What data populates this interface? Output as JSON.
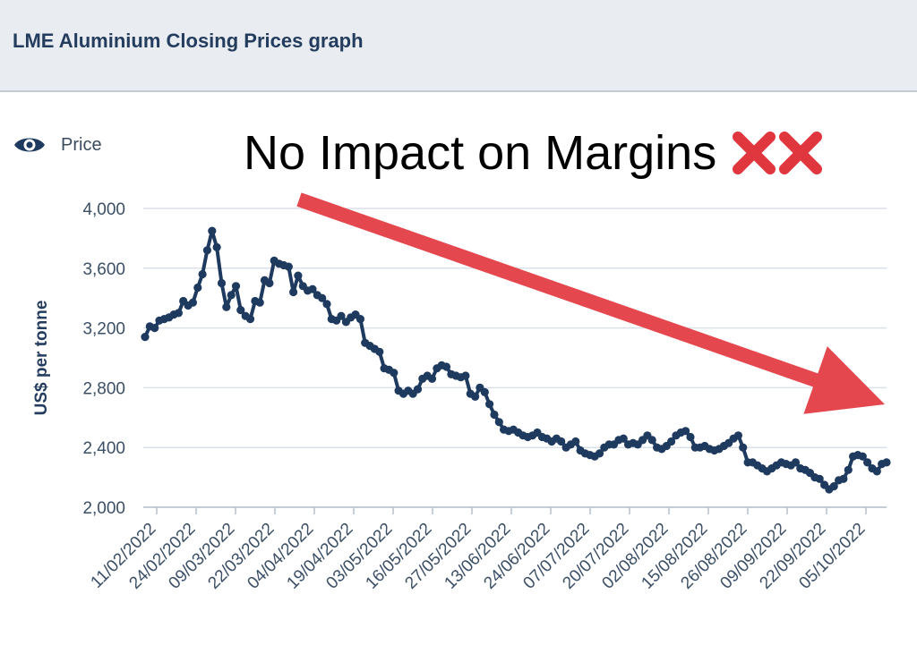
{
  "header": {
    "title": "LME Aluminium Closing Prices graph"
  },
  "legend": {
    "label": "Price",
    "icon": "eye-icon"
  },
  "annotation": {
    "text": "No Impact on Margins",
    "icons": [
      "cross-mark-icon",
      "cross-mark-icon"
    ],
    "color": "#e0373f"
  },
  "colors": {
    "line": "#1f3a5f",
    "arrow": "#e5474e",
    "grid": "#dbe1e8",
    "header_bg": "#e9edf2"
  },
  "chart_data": {
    "type": "line",
    "title": "LME Aluminium Closing Prices graph",
    "xlabel": "",
    "ylabel": "US$ per tonne",
    "ylim": [
      2000,
      4000
    ],
    "yticks": [
      "2,000",
      "2,400",
      "2,800",
      "3,200",
      "3,600",
      "4,000"
    ],
    "ytick_values": [
      2000,
      2400,
      2800,
      3200,
      3600,
      4000
    ],
    "xtick_labels": [
      "11/02/2022",
      "24/02/2022",
      "09/03/2022",
      "22/03/2022",
      "04/04/2022",
      "19/04/2022",
      "03/05/2022",
      "16/05/2022",
      "27/05/2022",
      "13/06/2022",
      "24/06/2022",
      "07/07/2022",
      "20/07/2022",
      "02/08/2022",
      "15/08/2022",
      "26/08/2022",
      "09/09/2022",
      "22/09/2022",
      "05/10/2022"
    ],
    "series": [
      {
        "name": "Price",
        "values": [
          3140,
          3210,
          3200,
          3250,
          3260,
          3270,
          3290,
          3300,
          3380,
          3350,
          3370,
          3470,
          3560,
          3720,
          3850,
          3740,
          3500,
          3340,
          3420,
          3480,
          3320,
          3280,
          3260,
          3380,
          3370,
          3520,
          3500,
          3650,
          3630,
          3620,
          3610,
          3440,
          3550,
          3480,
          3450,
          3460,
          3420,
          3400,
          3360,
          3260,
          3250,
          3280,
          3240,
          3270,
          3290,
          3260,
          3100,
          3080,
          3060,
          3040,
          2930,
          2920,
          2900,
          2780,
          2760,
          2780,
          2760,
          2790,
          2860,
          2880,
          2860,
          2930,
          2950,
          2940,
          2890,
          2880,
          2870,
          2880,
          2760,
          2740,
          2800,
          2770,
          2690,
          2620,
          2570,
          2520,
          2510,
          2520,
          2500,
          2480,
          2470,
          2480,
          2500,
          2470,
          2460,
          2440,
          2460,
          2440,
          2400,
          2420,
          2440,
          2380,
          2360,
          2350,
          2340,
          2360,
          2400,
          2420,
          2420,
          2450,
          2460,
          2420,
          2430,
          2420,
          2450,
          2480,
          2450,
          2400,
          2390,
          2410,
          2440,
          2480,
          2500,
          2510,
          2470,
          2400,
          2400,
          2410,
          2390,
          2380,
          2390,
          2410,
          2430,
          2460,
          2480,
          2400,
          2300,
          2300,
          2280,
          2260,
          2240,
          2260,
          2280,
          2300,
          2290,
          2280,
          2300,
          2260,
          2250,
          2230,
          2200,
          2190,
          2150,
          2120,
          2140,
          2180,
          2190,
          2250,
          2340,
          2350,
          2340,
          2300,
          2260,
          2240,
          2290,
          2300
        ]
      }
    ],
    "annotation_arrow": {
      "direction": "down-right",
      "start": {
        "x_label": "04/04/2022",
        "y": 3870
      },
      "end": {
        "x_label": "05/10/2022",
        "y": 2680
      }
    }
  }
}
